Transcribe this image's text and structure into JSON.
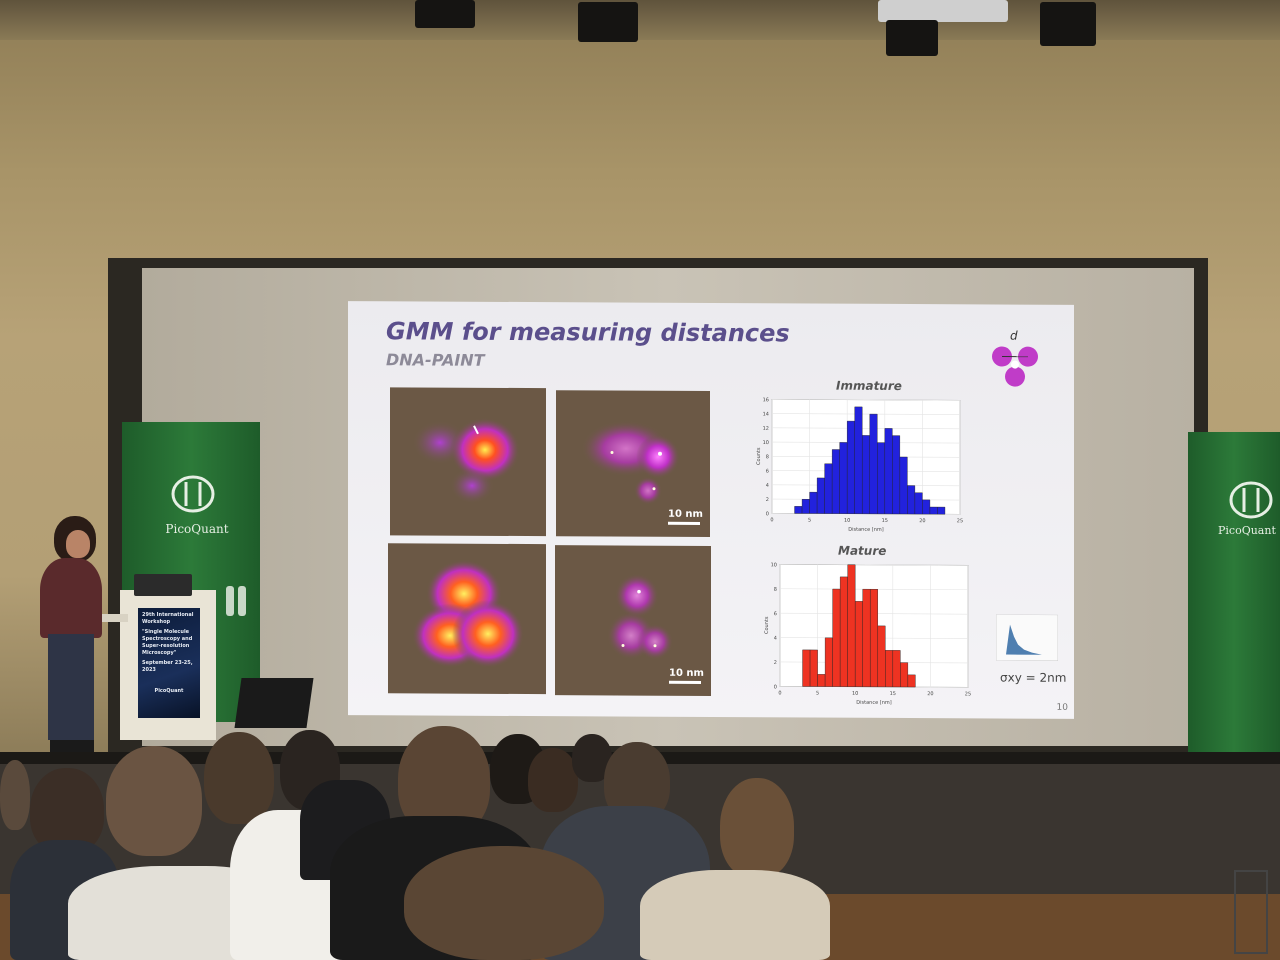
{
  "slide": {
    "title": "GMM for measuring distances",
    "subtitle": "DNA-PAINT",
    "diagram_label": "d",
    "page_number": "10",
    "sigma_label": "σxy = 2nm",
    "scale_bar_top": "10 nm",
    "scale_bar_bottom": "10 nm"
  },
  "colors": {
    "title": "#5b4f8c",
    "immature_bars": "#2222dd",
    "mature_bars": "#ee3322",
    "stand_green": "#2c7a39",
    "diagram_magenta": "#c03cc8"
  },
  "chart_data": [
    {
      "type": "bar",
      "title": "Immature",
      "xlabel": "Distance [nm]",
      "ylabel": "Counts",
      "x": [
        3,
        4,
        5,
        6,
        7,
        8,
        9,
        10,
        11,
        12,
        13,
        14,
        15,
        16,
        17,
        18,
        19,
        20,
        21,
        22
      ],
      "values": [
        1,
        2,
        3,
        5,
        7,
        9,
        10,
        13,
        15,
        11,
        14,
        10,
        12,
        11,
        8,
        4,
        3,
        2,
        1,
        1
      ],
      "xlim": [
        0,
        25
      ],
      "ylim": [
        0,
        16
      ],
      "xticks": [
        "0",
        "5",
        "10",
        "15",
        "20",
        "25"
      ],
      "yticks": [
        "0",
        "2",
        "4",
        "6",
        "8",
        "10",
        "12",
        "14",
        "16"
      ],
      "grid": true
    },
    {
      "type": "bar",
      "title": "Mature",
      "xlabel": "Distance [nm]",
      "ylabel": "Counts",
      "x": [
        3,
        4,
        5,
        6,
        7,
        8,
        9,
        10,
        11,
        12,
        13,
        14,
        15,
        16,
        17
      ],
      "values": [
        3,
        3,
        1,
        4,
        8,
        9,
        10,
        7,
        8,
        8,
        5,
        3,
        3,
        2,
        1
      ],
      "xlim": [
        0,
        25
      ],
      "ylim": [
        0,
        10
      ],
      "xticks": [
        "0",
        "5",
        "10",
        "15",
        "20",
        "25"
      ],
      "yticks": [
        "0",
        "2",
        "4",
        "6",
        "8",
        "10"
      ],
      "grid": true
    }
  ],
  "stands": {
    "left_brand": "PicoQuant",
    "right_brand": "PicoQuant"
  },
  "podium_poster": {
    "line1": "29th International Workshop",
    "line2": "\"Single Molecule Spectroscopy and Super-resolution Microscopy\"",
    "line3": "September 23-25, 2023",
    "brand": "PicoQuant"
  }
}
